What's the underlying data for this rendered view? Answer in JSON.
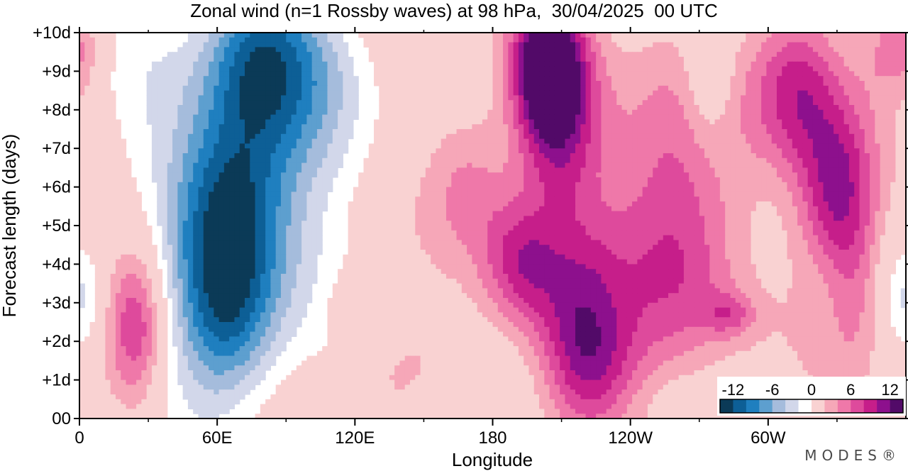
{
  "chart_data": {
    "type": "heatmap",
    "title": "Zonal wind (n=1 Rossby waves) at 98 hPa,  30/04/2025  00 UTC",
    "xlabel": "Longitude",
    "ylabel": "Forecast length (days)",
    "x_ticks": [
      {
        "lon": 0,
        "label": "0"
      },
      {
        "lon": 60,
        "label": "60E"
      },
      {
        "lon": 120,
        "label": "120E"
      },
      {
        "lon": 180,
        "label": "180"
      },
      {
        "lon": 240,
        "label": "120W"
      },
      {
        "lon": 300,
        "label": "60W"
      }
    ],
    "x_minor_ticks": [
      30,
      90,
      150,
      210,
      270,
      330
    ],
    "xlim": [
      0,
      360
    ],
    "y_ticks": [
      {
        "day": 0,
        "label": "00"
      },
      {
        "day": 1,
        "label": "+1d"
      },
      {
        "day": 2,
        "label": "+2d"
      },
      {
        "day": 3,
        "label": "+3d"
      },
      {
        "day": 4,
        "label": "+4d"
      },
      {
        "day": 5,
        "label": "+5d"
      },
      {
        "day": 6,
        "label": "+6d"
      },
      {
        "day": 7,
        "label": "+7d"
      },
      {
        "day": 8,
        "label": "+8d"
      },
      {
        "day": 9,
        "label": "+9d"
      },
      {
        "day": 10,
        "label": "+10d"
      }
    ],
    "ylim": [
      0,
      10
    ],
    "contour_levels": [
      -14,
      -12,
      -10,
      -8,
      -6,
      -4,
      -2,
      2,
      4,
      6,
      8,
      10,
      12,
      14
    ],
    "palette": [
      "#0b3a57",
      "#0d5f96",
      "#1f7fbf",
      "#5d9fcf",
      "#a5bcdc",
      "#d2d7ea",
      "#ffffff",
      "#f9d2d2",
      "#f6a7b8",
      "#ef78a9",
      "#de4a9c",
      "#c61e8a",
      "#8d108d",
      "#520a68"
    ],
    "colorbar": {
      "labels": [
        "-12",
        "-6",
        "0",
        "6",
        "12"
      ],
      "label_values": [
        -12,
        -6,
        0,
        6,
        12
      ]
    },
    "features": [
      {
        "lon": 64,
        "day": 5.2,
        "amp": -14.0,
        "sx": 17,
        "sy": 2.0
      },
      {
        "lon": 64,
        "day": 2.5,
        "amp": -6.0,
        "sx": 14,
        "sy": 1.4
      },
      {
        "lon": 78,
        "day": 9.4,
        "amp": -10.5,
        "sx": 17,
        "sy": 1.6
      },
      {
        "lon": 90,
        "day": 6.0,
        "amp": -4.5,
        "sx": 20,
        "sy": 3.2
      },
      {
        "lon": 110,
        "day": 9.0,
        "amp": -3.0,
        "sx": 18,
        "sy": 1.6
      },
      {
        "lon": 45,
        "day": 0.6,
        "amp": -2.8,
        "sx": 22,
        "sy": 1.4
      },
      {
        "lon": 30,
        "day": 8.0,
        "amp": -2.5,
        "sx": 18,
        "sy": 2.5
      },
      {
        "lon": 3,
        "day": 3.0,
        "amp": -3.2,
        "sx": 6,
        "sy": 1.0
      },
      {
        "lon": 162,
        "day": 0.2,
        "amp": -3.6,
        "sx": 12,
        "sy": 0.8
      },
      {
        "lon": 274,
        "day": 8.6,
        "amp": -4.0,
        "sx": 8,
        "sy": 1.3
      },
      {
        "lon": 325,
        "day": 3.6,
        "amp": -3.2,
        "sx": 8,
        "sy": 1.3
      },
      {
        "lon": 355,
        "day": 3.0,
        "amp": -3.0,
        "sx": 7,
        "sy": 1.3
      },
      {
        "lon": 238,
        "day": 0.7,
        "amp": -2.4,
        "sx": 20,
        "sy": 0.8
      },
      {
        "lon": 25,
        "day": 2.5,
        "amp": 8.5,
        "sx": 9,
        "sy": 1.5
      },
      {
        "lon": 204,
        "day": 9.2,
        "amp": 15.0,
        "sx": 11,
        "sy": 1.4
      },
      {
        "lon": 210,
        "day": 7.2,
        "amp": 7.0,
        "sx": 13,
        "sy": 1.8
      },
      {
        "lon": 192,
        "day": 4.0,
        "amp": 8.0,
        "sx": 12,
        "sy": 1.2
      },
      {
        "lon": 170,
        "day": 6.1,
        "amp": 5.0,
        "sx": 14,
        "sy": 1.4
      },
      {
        "lon": 218,
        "day": 2.3,
        "amp": 9.0,
        "sx": 14,
        "sy": 1.7
      },
      {
        "lon": 228,
        "day": 0.9,
        "amp": 5.0,
        "sx": 16,
        "sy": 1.0
      },
      {
        "lon": 248,
        "day": 5.0,
        "amp": 4.5,
        "sx": 20,
        "sy": 3.0
      },
      {
        "lon": 265,
        "day": 6.2,
        "amp": 3.5,
        "sx": 18,
        "sy": 2.5
      },
      {
        "lon": 262,
        "day": 3.3,
        "amp": 3.0,
        "sx": 16,
        "sy": 1.8
      },
      {
        "lon": 330,
        "day": 5.6,
        "amp": 11.0,
        "sx": 12,
        "sy": 1.8
      },
      {
        "lon": 312,
        "day": 8.6,
        "amp": 9.0,
        "sx": 14,
        "sy": 1.5
      },
      {
        "lon": 333,
        "day": 2.5,
        "amp": 3.5,
        "sx": 14,
        "sy": 2.0
      },
      {
        "lon": 352,
        "day": 9.6,
        "amp": 4.0,
        "sx": 8,
        "sy": 1.0
      },
      {
        "lon": 143,
        "day": 1.1,
        "amp": 3.0,
        "sx": 18,
        "sy": 1.0
      },
      {
        "lon": 120,
        "day": 3.0,
        "amp": 2.8,
        "sx": 8,
        "sy": 0.5
      },
      {
        "lon": 3,
        "day": 9.5,
        "amp": 3.0,
        "sx": 6,
        "sy": 0.8
      },
      {
        "lon": 283,
        "day": 2.7,
        "amp": 4.6,
        "sx": 8,
        "sy": 0.4
      }
    ]
  },
  "watermark": "MODES®"
}
